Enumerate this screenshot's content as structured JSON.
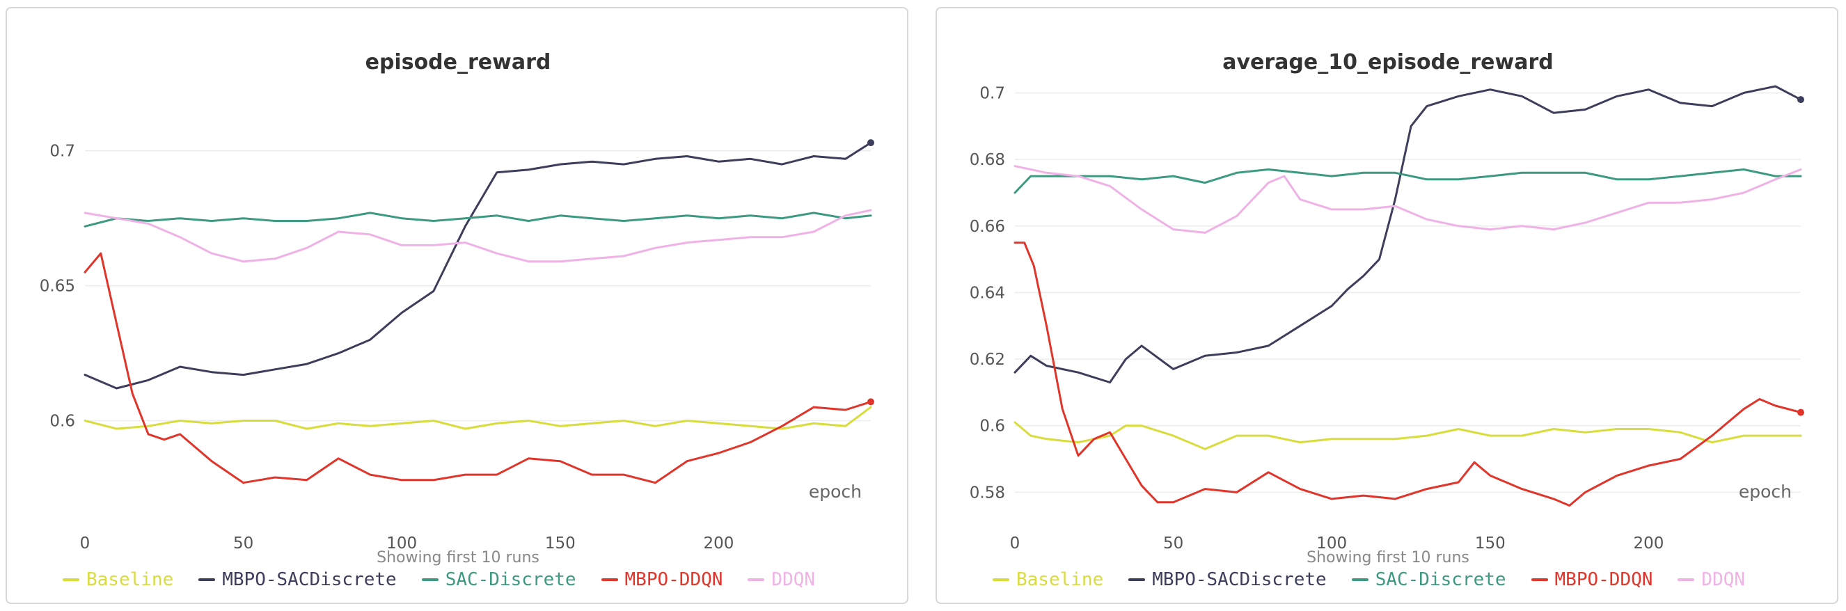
{
  "colors": {
    "Baseline": "#d8dc3c",
    "MBPO-SACDiscrete": "#3d3d5c",
    "SAC-Discrete": "#3d9a80",
    "MBPO-DDQN": "#e0352b",
    "DDQN": "#f0b2e6"
  },
  "legend": [
    "Baseline",
    "MBPO-SACDiscrete",
    "SAC-Discrete",
    "MBPO-DDQN",
    "DDQN"
  ],
  "caption": "Showing first 10 runs",
  "chart_data": [
    {
      "type": "line",
      "title": "episode_reward",
      "xlabel": "epoch",
      "ylabel": "",
      "xlim": [
        0,
        248
      ],
      "ylim": [
        0.563,
        0.727
      ],
      "xticks": [
        0,
        50,
        100,
        150,
        200
      ],
      "yticks": [
        0.6,
        0.65,
        0.7
      ],
      "grid": true,
      "series": [
        {
          "name": "Baseline",
          "x": [
            0,
            10,
            20,
            30,
            40,
            50,
            60,
            70,
            80,
            90,
            100,
            110,
            120,
            130,
            140,
            150,
            160,
            170,
            180,
            190,
            200,
            210,
            220,
            230,
            240,
            248
          ],
          "y": [
            0.6,
            0.597,
            0.598,
            0.6,
            0.599,
            0.6,
            0.6,
            0.597,
            0.599,
            0.598,
            0.599,
            0.6,
            0.597,
            0.599,
            0.6,
            0.598,
            0.599,
            0.6,
            0.598,
            0.6,
            0.599,
            0.598,
            0.597,
            0.599,
            0.598,
            0.605
          ]
        },
        {
          "name": "MBPO-SACDiscrete",
          "x": [
            0,
            10,
            20,
            30,
            40,
            50,
            60,
            70,
            80,
            90,
            100,
            110,
            120,
            130,
            140,
            150,
            160,
            170,
            180,
            190,
            200,
            210,
            220,
            230,
            240,
            248
          ],
          "y": [
            0.617,
            0.612,
            0.615,
            0.62,
            0.618,
            0.617,
            0.619,
            0.621,
            0.625,
            0.63,
            0.64,
            0.648,
            0.672,
            0.692,
            0.693,
            0.695,
            0.696,
            0.695,
            0.697,
            0.698,
            0.696,
            0.697,
            0.695,
            0.698,
            0.697,
            0.703
          ]
        },
        {
          "name": "SAC-Discrete",
          "x": [
            0,
            10,
            20,
            30,
            40,
            50,
            60,
            70,
            80,
            90,
            100,
            110,
            120,
            130,
            140,
            150,
            160,
            170,
            180,
            190,
            200,
            210,
            220,
            230,
            240,
            248
          ],
          "y": [
            0.672,
            0.675,
            0.674,
            0.675,
            0.674,
            0.675,
            0.674,
            0.674,
            0.675,
            0.677,
            0.675,
            0.674,
            0.675,
            0.676,
            0.674,
            0.676,
            0.675,
            0.674,
            0.675,
            0.676,
            0.675,
            0.676,
            0.675,
            0.677,
            0.675,
            0.676
          ]
        },
        {
          "name": "MBPO-DDQN",
          "x": [
            0,
            5,
            10,
            15,
            20,
            25,
            30,
            40,
            50,
            60,
            70,
            80,
            90,
            100,
            110,
            120,
            130,
            140,
            150,
            160,
            170,
            180,
            190,
            200,
            210,
            220,
            230,
            240,
            248
          ],
          "y": [
            0.655,
            0.662,
            0.636,
            0.61,
            0.595,
            0.593,
            0.595,
            0.585,
            0.577,
            0.579,
            0.578,
            0.586,
            0.58,
            0.578,
            0.578,
            0.58,
            0.58,
            0.586,
            0.585,
            0.58,
            0.58,
            0.577,
            0.585,
            0.588,
            0.592,
            0.598,
            0.605,
            0.604,
            0.607
          ]
        },
        {
          "name": "DDQN",
          "x": [
            0,
            10,
            20,
            30,
            40,
            50,
            60,
            70,
            80,
            90,
            100,
            110,
            120,
            130,
            140,
            150,
            160,
            170,
            180,
            190,
            200,
            210,
            220,
            230,
            240,
            248
          ],
          "y": [
            0.677,
            0.675,
            0.673,
            0.668,
            0.662,
            0.659,
            0.66,
            0.664,
            0.67,
            0.669,
            0.665,
            0.665,
            0.666,
            0.662,
            0.659,
            0.659,
            0.66,
            0.661,
            0.664,
            0.666,
            0.667,
            0.668,
            0.668,
            0.67,
            0.676,
            0.678
          ]
        }
      ]
    },
    {
      "type": "line",
      "title": "average_10_episode_reward",
      "xlabel": "epoch",
      "ylabel": "",
      "xlim": [
        0,
        248
      ],
      "ylim": [
        0.5715,
        0.7045
      ],
      "xticks": [
        0,
        50,
        100,
        150,
        200
      ],
      "yticks": [
        0.58,
        0.6,
        0.62,
        0.64,
        0.66,
        0.68,
        0.7
      ],
      "grid": true,
      "series": [
        {
          "name": "Baseline",
          "x": [
            0,
            5,
            10,
            20,
            30,
            35,
            40,
            50,
            60,
            70,
            80,
            90,
            100,
            110,
            120,
            130,
            140,
            150,
            160,
            170,
            180,
            190,
            200,
            210,
            220,
            230,
            240,
            248
          ],
          "y": [
            0.601,
            0.597,
            0.596,
            0.595,
            0.597,
            0.6,
            0.6,
            0.597,
            0.593,
            0.597,
            0.597,
            0.595,
            0.596,
            0.596,
            0.596,
            0.597,
            0.599,
            0.597,
            0.597,
            0.599,
            0.598,
            0.599,
            0.599,
            0.598,
            0.595,
            0.597,
            0.597,
            0.597
          ]
        },
        {
          "name": "MBPO-SACDiscrete",
          "x": [
            0,
            5,
            10,
            20,
            30,
            35,
            40,
            50,
            60,
            70,
            80,
            90,
            100,
            105,
            110,
            115,
            120,
            125,
            130,
            140,
            150,
            160,
            170,
            180,
            190,
            200,
            210,
            220,
            230,
            240,
            248
          ],
          "y": [
            0.616,
            0.621,
            0.618,
            0.616,
            0.613,
            0.62,
            0.624,
            0.617,
            0.621,
            0.622,
            0.624,
            0.63,
            0.636,
            0.641,
            0.645,
            0.65,
            0.668,
            0.69,
            0.696,
            0.699,
            0.701,
            0.699,
            0.694,
            0.695,
            0.699,
            0.701,
            0.697,
            0.696,
            0.7,
            0.702,
            0.698
          ]
        },
        {
          "name": "SAC-Discrete",
          "x": [
            0,
            5,
            10,
            20,
            30,
            40,
            50,
            60,
            70,
            80,
            90,
            100,
            110,
            120,
            130,
            140,
            150,
            160,
            170,
            180,
            190,
            200,
            210,
            220,
            230,
            240,
            248
          ],
          "y": [
            0.67,
            0.675,
            0.675,
            0.675,
            0.675,
            0.674,
            0.675,
            0.673,
            0.676,
            0.677,
            0.676,
            0.675,
            0.676,
            0.676,
            0.674,
            0.674,
            0.675,
            0.676,
            0.676,
            0.676,
            0.674,
            0.674,
            0.675,
            0.676,
            0.677,
            0.675,
            0.675
          ]
        },
        {
          "name": "MBPO-DDQN",
          "x": [
            0,
            3,
            6,
            10,
            15,
            20,
            25,
            30,
            35,
            40,
            45,
            50,
            60,
            70,
            80,
            90,
            100,
            110,
            120,
            130,
            140,
            145,
            150,
            160,
            170,
            175,
            180,
            190,
            200,
            210,
            220,
            230,
            235,
            240,
            248
          ],
          "y": [
            0.655,
            0.655,
            0.648,
            0.63,
            0.605,
            0.591,
            0.596,
            0.598,
            0.59,
            0.582,
            0.577,
            0.577,
            0.581,
            0.58,
            0.586,
            0.581,
            0.578,
            0.579,
            0.578,
            0.581,
            0.583,
            0.589,
            0.585,
            0.581,
            0.578,
            0.576,
            0.58,
            0.585,
            0.588,
            0.59,
            0.597,
            0.605,
            0.608,
            0.606,
            0.604
          ]
        },
        {
          "name": "DDQN",
          "x": [
            0,
            10,
            20,
            30,
            40,
            50,
            60,
            70,
            80,
            85,
            90,
            100,
            110,
            120,
            130,
            140,
            150,
            160,
            170,
            180,
            190,
            200,
            210,
            220,
            230,
            240,
            248
          ],
          "y": [
            0.678,
            0.676,
            0.675,
            0.672,
            0.665,
            0.659,
            0.658,
            0.663,
            0.673,
            0.675,
            0.668,
            0.665,
            0.665,
            0.666,
            0.662,
            0.66,
            0.659,
            0.66,
            0.659,
            0.661,
            0.664,
            0.667,
            0.667,
            0.668,
            0.67,
            0.674,
            0.677
          ]
        }
      ]
    }
  ]
}
